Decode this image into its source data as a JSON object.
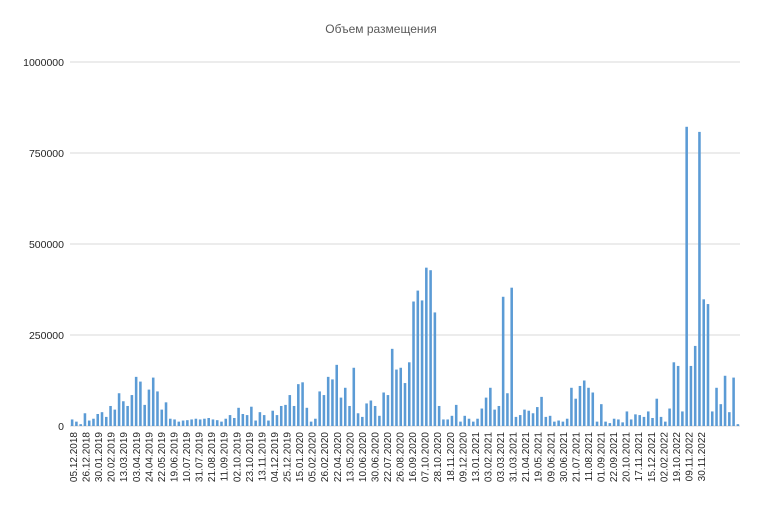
{
  "chart_data": {
    "type": "bar",
    "title": "Объем размещения",
    "xlabel": "",
    "ylabel": "",
    "ylim": [
      0,
      1000000
    ],
    "y_ticks": [
      "0",
      "250000",
      "500000",
      "750000",
      "1000000"
    ],
    "grid": true,
    "legend": "none",
    "colors": {
      "bar": "#5b9bd5",
      "grid": "#d9d9d9",
      "text": "#262626",
      "title": "#595959"
    },
    "x_tick_labels": [
      "05.12.2018",
      "26.12.2018",
      "30.01.2019",
      "20.02.2019",
      "13.03.2019",
      "03.04.2019",
      "24.04.2019",
      "22.05.2019",
      "19.06.2019",
      "10.07.2019",
      "31.07.2019",
      "21.08.2019",
      "11.09.2019",
      "02.10.2019",
      "23.10.2019",
      "13.11.2019",
      "04.12.2019",
      "25.12.2019",
      "15.01.2020",
      "05.02.2020",
      "26.02.2020",
      "22.04.2020",
      "13.05.2020",
      "10.06.2020",
      "30.06.2020",
      "22.07.2020",
      "26.08.2020",
      "16.09.2020",
      "07.10.2020",
      "28.10.2020",
      "18.11.2020",
      "09.12.2020",
      "13.01.2021",
      "03.02.2021",
      "03.03.2021",
      "31.03.2021",
      "21.04.2021",
      "19.05.2021",
      "09.06.2021",
      "30.06.2021",
      "21.07.2021",
      "11.08.2021",
      "01.09.2021",
      "22.09.2021",
      "20.10.2021",
      "17.11.2021",
      "15.12.2021",
      "02.02.2022",
      "19.10.2022",
      "09.11.2022",
      "30.11.2022"
    ],
    "values": [
      18000,
      12000,
      5000,
      35000,
      15000,
      20000,
      33000,
      38000,
      25000,
      55000,
      45000,
      90000,
      68000,
      55000,
      85000,
      135000,
      122000,
      58000,
      100000,
      133000,
      95000,
      45000,
      65000,
      20000,
      18000,
      12000,
      15000,
      16000,
      18000,
      20000,
      18000,
      20000,
      22000,
      18000,
      16000,
      12000,
      20000,
      30000,
      22000,
      50000,
      33000,
      30000,
      53000,
      15000,
      38000,
      30000,
      15000,
      42000,
      30000,
      55000,
      58000,
      85000,
      55000,
      115000,
      120000,
      50000,
      12000,
      20000,
      95000,
      85000,
      135000,
      128000,
      168000,
      78000,
      105000,
      55000,
      160000,
      35000,
      25000,
      62000,
      70000,
      55000,
      28000,
      92000,
      85000,
      212000,
      155000,
      160000,
      118000,
      175000,
      342000,
      372000,
      345000,
      435000,
      428000,
      312000,
      55000,
      18000,
      18000,
      28000,
      58000,
      12000,
      28000,
      20000,
      12000,
      20000,
      48000,
      78000,
      105000,
      45000,
      55000,
      355000,
      90000,
      380000,
      25000,
      30000,
      45000,
      42000,
      35000,
      52000,
      80000,
      25000,
      28000,
      12000,
      15000,
      12000,
      20000,
      105000,
      75000,
      110000,
      125000,
      105000,
      92000,
      12000,
      60000,
      12000,
      8000,
      20000,
      18000,
      10000,
      40000,
      18000,
      32000,
      30000,
      25000,
      40000,
      22000,
      75000,
      25000,
      12000,
      48000,
      175000,
      165000,
      40000,
      822000,
      165000,
      220000,
      808000,
      348000,
      335000,
      40000,
      105000,
      60000,
      138000,
      38000,
      133000,
      5000
    ]
  }
}
